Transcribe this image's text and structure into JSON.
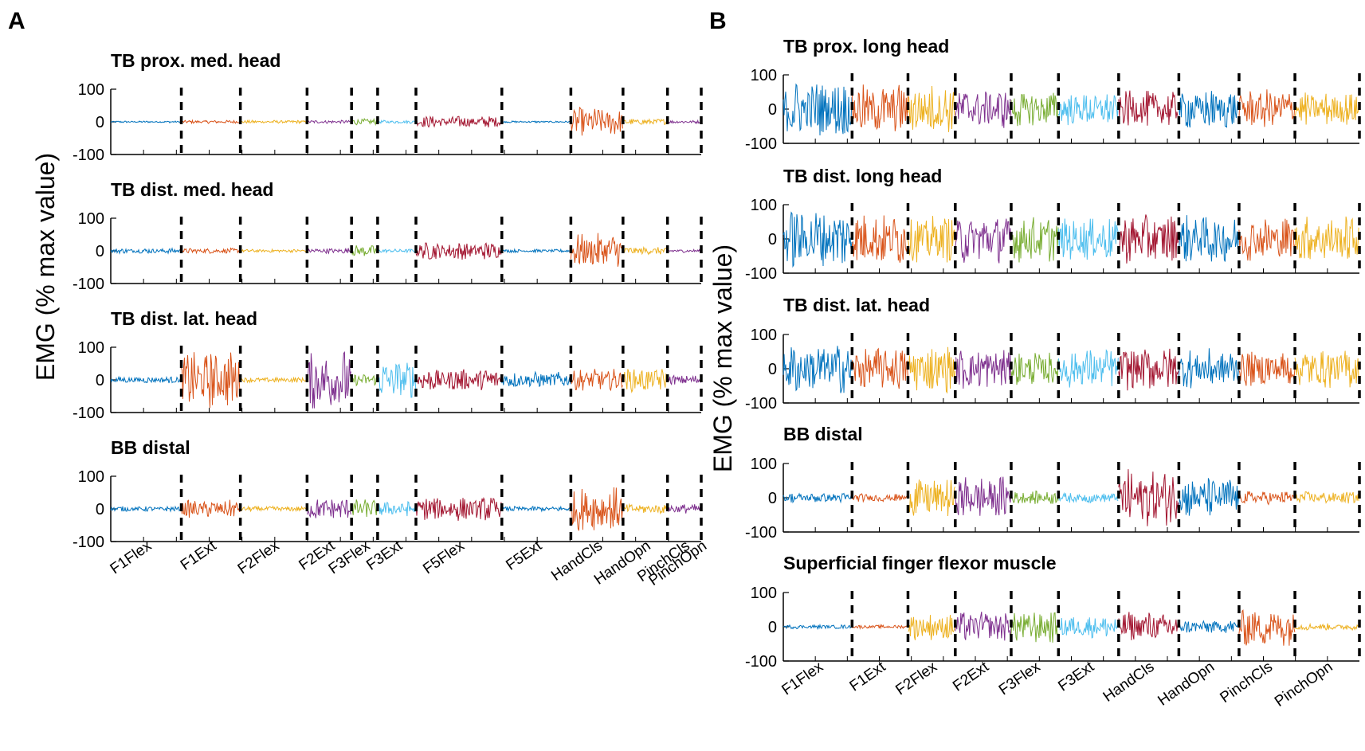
{
  "panel_labels": [
    "A",
    "B"
  ],
  "colors": [
    "#0072BD",
    "#D95319",
    "#EDB120",
    "#7E2F8E",
    "#77AC30",
    "#4DBEEE",
    "#A2142F"
  ],
  "chart_data": [
    {
      "panel": "A",
      "type": "line",
      "ylabel": "EMG (% max value)",
      "ylim": [
        -100,
        100
      ],
      "yticks": [
        100,
        0,
        -100
      ],
      "categories": [
        "F1Flex",
        "F1Ext",
        "F2Flex",
        "F2Ext",
        "F3Flex",
        "F3Ext",
        "F5Flex",
        "F5Ext",
        "HandCls",
        "HandOpn",
        "PinchCls",
        "PinchOpn"
      ],
      "segment_bounds": [
        0,
        9.2,
        16.9,
        25.6,
        31.4,
        34.8,
        39.8,
        51.0,
        60.0,
        66.8,
        72.6,
        77.0
      ],
      "total_length": 77.0,
      "subplots": [
        {
          "title": "TB prox. med. head",
          "amplitudes": [
            3,
            5,
            5,
            5,
            10,
            5,
            18,
            3,
            45,
            10,
            5,
            3
          ]
        },
        {
          "title": "TB dist. med. head",
          "amplitudes": [
            8,
            8,
            5,
            8,
            18,
            6,
            28,
            5,
            55,
            12,
            5,
            6
          ]
        },
        {
          "title": "TB dist. lat. head",
          "amplitudes": [
            10,
            90,
            8,
            95,
            18,
            60,
            35,
            25,
            35,
            38,
            15,
            92
          ]
        },
        {
          "title": "BB distal",
          "amplitudes": [
            8,
            28,
            8,
            35,
            30,
            25,
            38,
            8,
            70,
            15,
            15,
            30
          ]
        }
      ]
    },
    {
      "panel": "B",
      "type": "line",
      "ylabel": "EMG (% max value)",
      "ylim": [
        -100,
        100
      ],
      "yticks": [
        100,
        0,
        -100
      ],
      "categories": [
        "F1Flex",
        "F1Ext",
        "F2Flex",
        "F2Ext",
        "F3Flex",
        "F3Ext",
        "HandCls",
        "HandOpn",
        "PinchCls",
        "PinchOpn"
      ],
      "segment_bounds": [
        0,
        8.0,
        14.5,
        20.0,
        26.5,
        32.0,
        39.0,
        46.0,
        53.0,
        59.5,
        67.0
      ],
      "total_length": 67.0,
      "subplots": [
        {
          "title": "TB prox. long head",
          "amplitudes": [
            85,
            75,
            75,
            60,
            55,
            50,
            55,
            60,
            60,
            50
          ]
        },
        {
          "title": "TB dist. long head",
          "amplitudes": [
            90,
            80,
            70,
            75,
            70,
            65,
            75,
            75,
            65,
            70
          ]
        },
        {
          "title": "TB dist. lat. head",
          "amplitudes": [
            75,
            65,
            70,
            65,
            50,
            60,
            65,
            60,
            55,
            60
          ]
        },
        {
          "title": "BB distal",
          "amplitudes": [
            15,
            12,
            60,
            65,
            20,
            15,
            85,
            60,
            20,
            18
          ]
        },
        {
          "title": "Superficial finger flexor muscle",
          "amplitudes": [
            6,
            5,
            40,
            45,
            50,
            35,
            45,
            20,
            60,
            10
          ]
        }
      ]
    }
  ]
}
